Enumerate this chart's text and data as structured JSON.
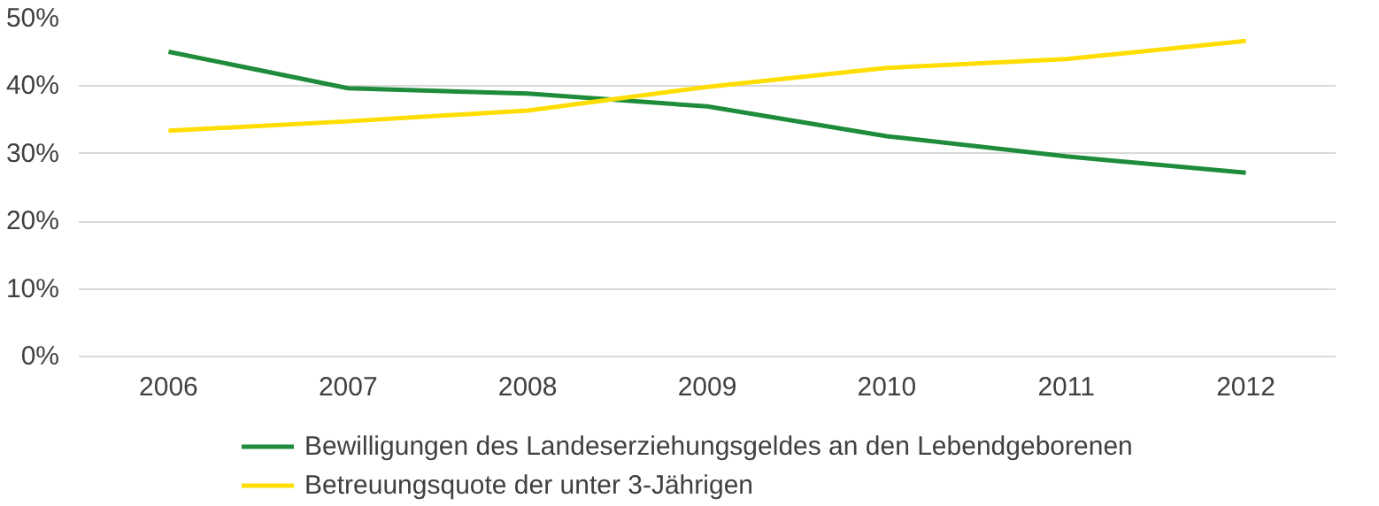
{
  "chart_data": {
    "type": "line",
    "categories": [
      "2006",
      "2007",
      "2008",
      "2009",
      "2010",
      "2011",
      "2012"
    ],
    "series": [
      {
        "name": "Bewilligungen des Landeserziehungsgeldes an den Lebendgeborenen",
        "color": "#1e8c3a",
        "values": [
          45.1,
          39.7,
          38.9,
          37.0,
          32.6,
          29.6,
          27.2
        ]
      },
      {
        "name": "Betreuungsquote der unter 3-Jährigen",
        "color": "#ffdd00",
        "values": [
          33.4,
          34.8,
          36.4,
          39.9,
          42.7,
          44.0,
          46.7
        ]
      }
    ],
    "ylim": [
      0,
      50
    ],
    "yticks": [
      {
        "value": 0,
        "label": "0%"
      },
      {
        "value": 10,
        "label": "10%"
      },
      {
        "value": 20,
        "label": "20%"
      },
      {
        "value": 30,
        "label": "30%"
      },
      {
        "value": 40,
        "label": "40%"
      },
      {
        "value": 50,
        "label": "50%"
      }
    ],
    "grid": "y",
    "legend": "bottom",
    "marker": "none",
    "line_style": "solid"
  }
}
